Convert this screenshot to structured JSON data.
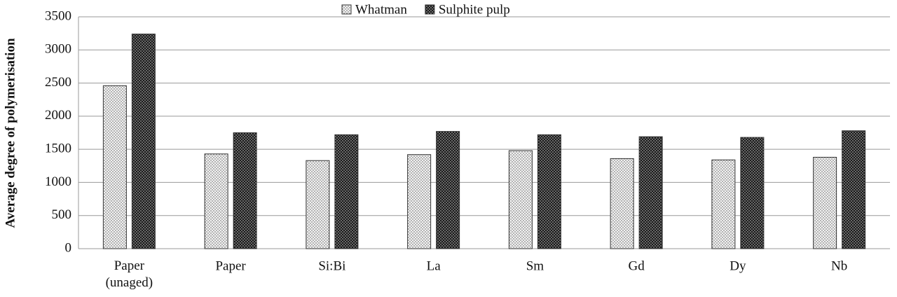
{
  "chart_data": {
    "type": "bar",
    "y_label": "Average degree of polymerisation",
    "categories": [
      "Paper (unaged)",
      "Paper",
      "Si:Bi",
      "La",
      "Sm",
      "Gd",
      "Dy",
      "Nb"
    ],
    "series": [
      {
        "name": "Whatman",
        "color": "#f2f2f2",
        "values": [
          2460,
          1430,
          1330,
          1420,
          1480,
          1360,
          1340,
          1380
        ]
      },
      {
        "name": "Sulphite pulp",
        "color": "#1a1a1a",
        "values": [
          3240,
          1750,
          1720,
          1770,
          1720,
          1690,
          1680,
          1780
        ]
      }
    ],
    "ylim": [
      0,
      3500
    ],
    "yticks": [
      0,
      500,
      1000,
      1500,
      2000,
      2500,
      3000,
      3500
    ],
    "grid": true,
    "legend": "top"
  }
}
